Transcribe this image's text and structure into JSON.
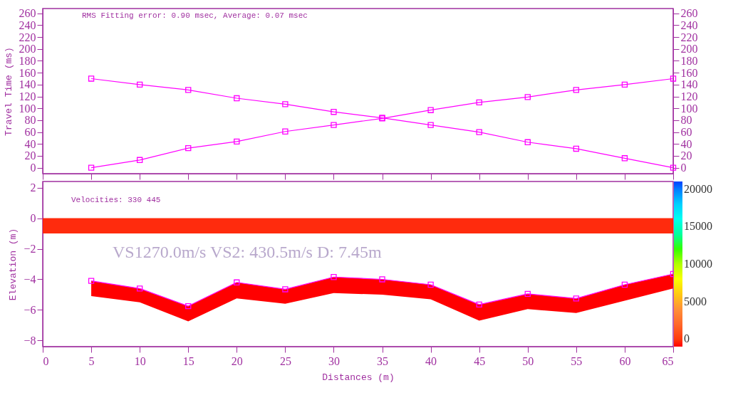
{
  "chart_data": [
    {
      "type": "line",
      "ylabel": "Travel Time (ms)",
      "x": [
        5,
        10,
        15,
        20,
        25,
        30,
        35,
        40,
        45,
        50,
        55,
        60,
        65
      ],
      "series": [
        {
          "color": "#ff00ff",
          "values": [
            0,
            13,
            33,
            44,
            61,
            72,
            83,
            97,
            110,
            119,
            131,
            140,
            150
          ]
        },
        {
          "color": "#ff00ff",
          "values": [
            150,
            140,
            131,
            117,
            107,
            94,
            84,
            72,
            60,
            43,
            32,
            16,
            0
          ]
        }
      ],
      "xlim": [
        0,
        65
      ],
      "xticks": [
        0,
        5,
        10,
        15,
        20,
        25,
        30,
        35,
        40,
        45,
        50,
        55,
        60,
        65
      ],
      "ylim": [
        -10,
        268
      ],
      "yticks": [
        0,
        20,
        40,
        60,
        80,
        100,
        120,
        140,
        160,
        180,
        200,
        220,
        240,
        260
      ],
      "y2lim": [
        -10,
        268
      ],
      "y2ticks": [
        0,
        20,
        40,
        60,
        80,
        100,
        120,
        140,
        160,
        180,
        200,
        220,
        240,
        260
      ],
      "annotations": [
        "RMS Fitting error:     0.90 msec, Average:     0.07 msec"
      ],
      "marker": "square",
      "tick_labels": "y",
      "grid": false
    },
    {
      "type": "line",
      "xlabel": "Distances (m)",
      "ylabel": "Elevation (m)",
      "x": [
        5,
        10,
        15,
        20,
        25,
        30,
        35,
        40,
        45,
        50,
        55,
        60,
        65
      ],
      "series": [
        {
          "color": "#ff00ff",
          "values": [
            -4.1,
            -4.6,
            -5.75,
            -4.2,
            -4.65,
            -3.85,
            -4.0,
            -4.35,
            -5.65,
            -4.95,
            -5.25,
            -4.35,
            -3.65
          ],
          "lower": [
            -5.1,
            -5.5,
            -6.75,
            -5.25,
            -5.6,
            -4.9,
            -5.0,
            -5.3,
            -6.7,
            -5.95,
            -6.2,
            -5.4,
            -4.6
          ],
          "upper": [
            -4.1,
            -4.6,
            -5.75,
            -4.2,
            -4.65,
            -3.85,
            -4.0,
            -4.35,
            -5.65,
            -4.95,
            -5.25,
            -4.35,
            -3.65
          ]
        }
      ],
      "bands": [
        {
          "axis": "y",
          "from": -1,
          "to": 0,
          "color": "#ff2000"
        }
      ],
      "xlim": [
        0,
        65
      ],
      "xticks": [
        0,
        5,
        10,
        15,
        20,
        25,
        30,
        35,
        40,
        45,
        50,
        55,
        60,
        65
      ],
      "ylim": [
        -8.4,
        2.4
      ],
      "yticks": [
        -8,
        -6,
        -4,
        -2,
        0,
        2
      ],
      "clim": [
        -1000,
        21000
      ],
      "cticks": [
        0,
        5000,
        10000,
        15000,
        20000
      ],
      "annotations": [
        "Velocities:     330     445",
        "VS1270.0m/s   VS2:   430.5m/s D: 7.45m"
      ],
      "marker": "square",
      "grid": false
    }
  ]
}
